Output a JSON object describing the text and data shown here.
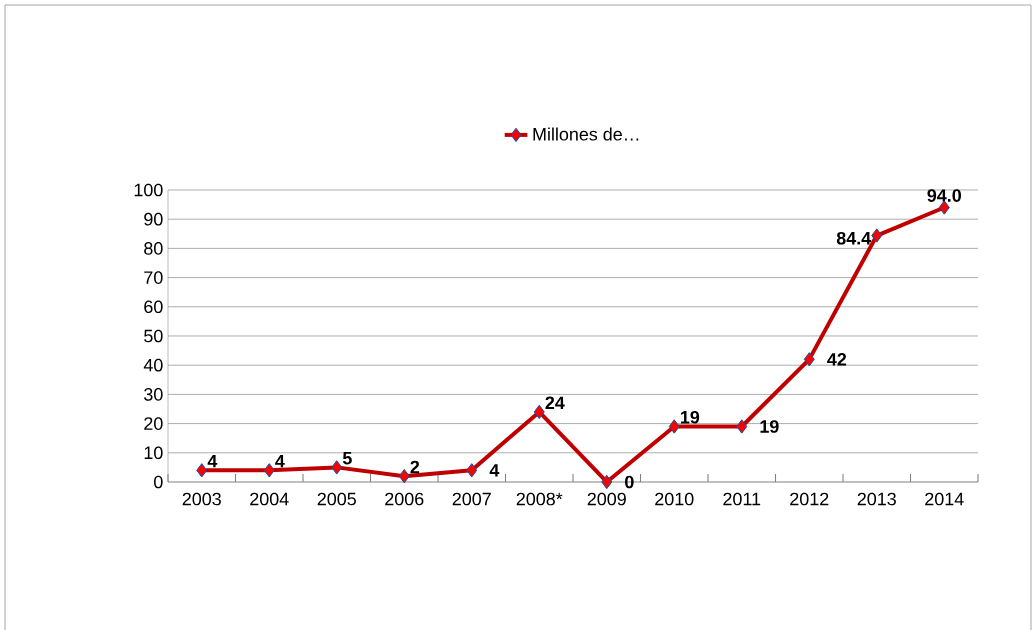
{
  "chart_data": {
    "type": "line",
    "categories": [
      "2003",
      "2004",
      "2005",
      "2006",
      "2007",
      "2008*",
      "2009",
      "2010",
      "2011",
      "2012",
      "2013",
      "2014"
    ],
    "series": [
      {
        "name": "Millones de…",
        "color": "#c00000",
        "values": [
          4,
          4,
          5,
          2,
          4,
          24,
          0,
          19,
          19,
          42,
          84.4,
          94.0
        ],
        "value_labels": [
          "4",
          "4",
          "5",
          "2",
          "4",
          "24",
          "0",
          "19",
          "19",
          "42",
          "84.4",
          "94.0"
        ]
      }
    ],
    "ylim": [
      0,
      100
    ],
    "yticks": [
      0,
      10,
      20,
      30,
      40,
      50,
      60,
      70,
      80,
      90,
      100
    ],
    "grid": "y",
    "legend": "top",
    "marker": "diamond",
    "line_style": "solid"
  }
}
